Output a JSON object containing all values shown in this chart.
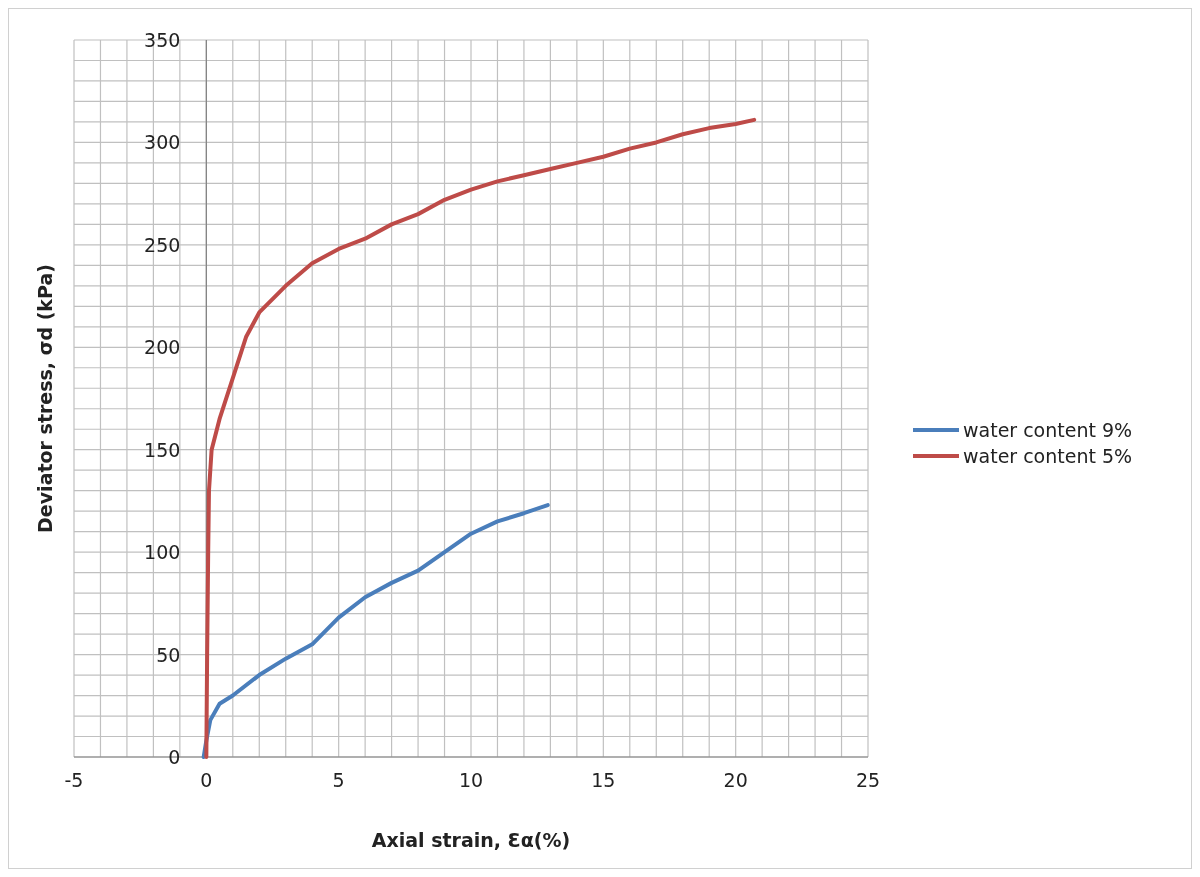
{
  "chart_data": {
    "type": "line",
    "xlabel": "Axial strain, Ɛα(%)",
    "ylabel": "Deviator stress, σd (kPa)",
    "xlim": [
      -5,
      25
    ],
    "xticks": [
      -5,
      {
        "value": -4,
        "label": null
      },
      {
        "value": -3,
        "label": null
      },
      {
        "value": -2,
        "label": null
      },
      {
        "value": -1,
        "label": null
      },
      0,
      {
        "value": 1,
        "label": null
      },
      {
        "value": 2,
        "label": null
      },
      {
        "value": 3,
        "label": null
      },
      {
        "value": 4,
        "label": null
      },
      5,
      {
        "value": 6,
        "label": null
      },
      {
        "value": 7,
        "label": null
      },
      {
        "value": 8,
        "label": null
      },
      {
        "value": 9,
        "label": null
      },
      10,
      {
        "value": 11,
        "label": null
      },
      {
        "value": 12,
        "label": null
      },
      {
        "value": 13,
        "label": null
      },
      {
        "value": 14,
        "label": null
      },
      15,
      {
        "value": 16,
        "label": null
      },
      {
        "value": 17,
        "label": null
      },
      {
        "value": 18,
        "label": null
      },
      {
        "value": 19,
        "label": null
      },
      20,
      {
        "value": 21,
        "label": null
      },
      {
        "value": 22,
        "label": null
      },
      {
        "value": 23,
        "label": null
      },
      {
        "value": 24,
        "label": null
      },
      25
    ],
    "ylim": [
      0,
      350
    ],
    "yticks": [
      0,
      {
        "value": 10,
        "label": null
      },
      {
        "value": 20,
        "label": null
      },
      {
        "value": 30,
        "label": null
      },
      {
        "value": 40,
        "label": null
      },
      50,
      {
        "value": 60,
        "label": null
      },
      {
        "value": 70,
        "label": null
      },
      {
        "value": 80,
        "label": null
      },
      {
        "value": 90,
        "label": null
      },
      100,
      {
        "value": 110,
        "label": null
      },
      {
        "value": 120,
        "label": null
      },
      {
        "value": 130,
        "label": null
      },
      {
        "value": 140,
        "label": null
      },
      150,
      {
        "value": 160,
        "label": null
      },
      {
        "value": 170,
        "label": null
      },
      {
        "value": 180,
        "label": null
      },
      {
        "value": 190,
        "label": null
      },
      200,
      {
        "value": 210,
        "label": null
      },
      {
        "value": 220,
        "label": null
      },
      {
        "value": 230,
        "label": null
      },
      {
        "value": 240,
        "label": null
      },
      250,
      {
        "value": 260,
        "label": null
      },
      {
        "value": 270,
        "label": null
      },
      {
        "value": 280,
        "label": null
      },
      {
        "value": 290,
        "label": null
      },
      300,
      {
        "value": 310,
        "label": null
      },
      {
        "value": 320,
        "label": null
      },
      {
        "value": 330,
        "label": null
      },
      {
        "value": 340,
        "label": null
      },
      350
    ],
    "grid": true,
    "legend": "right",
    "marker": "none",
    "line_style": "solid",
    "series": [
      {
        "name": "water content 9%",
        "color": "#4a7ebb",
        "x": [
          -0.1,
          0,
          0.15,
          0.5,
          1,
          2,
          3,
          4,
          5,
          6,
          7,
          8,
          9,
          10,
          11,
          12,
          12.9
        ],
        "values": [
          0,
          8,
          18,
          26,
          30,
          40,
          48,
          55,
          68,
          78,
          85,
          91,
          100,
          109,
          115,
          119,
          123
        ]
      },
      {
        "name": "water content 5%",
        "color": "#be4b48",
        "x": [
          0,
          0.03,
          0.07,
          0.1,
          0.2,
          0.5,
          1,
          1.5,
          2,
          3,
          4,
          5,
          6,
          7,
          8,
          9,
          10,
          11,
          12,
          13,
          14,
          15,
          16,
          17,
          18,
          19,
          20,
          20.7
        ],
        "values": [
          0,
          50,
          100,
          130,
          150,
          165,
          185,
          205,
          217,
          230,
          241,
          248,
          253,
          260,
          265,
          272,
          277,
          281,
          284,
          287,
          290,
          293,
          297,
          300,
          304,
          307,
          309,
          311
        ]
      }
    ]
  }
}
